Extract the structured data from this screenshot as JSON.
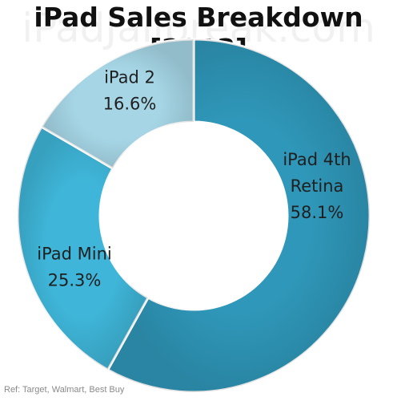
{
  "watermark": "iPadJailbreak.com",
  "source_note": "Ref: Target, Walmart, Best Buy",
  "colors": {
    "ipad_4th_retina": "#2f97b9",
    "ipad_mini": "#3fb6d9",
    "ipad_2": "#a6d6e6",
    "edge": "#ffffff"
  },
  "chart_data": {
    "type": "pie",
    "title": "iPad Sales Breakdown [2013]",
    "donut": true,
    "slices": [
      {
        "label_lines": [
          "iPad 4th",
          "Retina"
        ],
        "value": 58.1,
        "value_label": "58.1%",
        "color_key": "ipad_4th_retina"
      },
      {
        "label_lines": [
          "iPad Mini"
        ],
        "value": 25.3,
        "value_label": "25.3%",
        "color_key": "ipad_mini"
      },
      {
        "label_lines": [
          "iPad 2"
        ],
        "value": 16.6,
        "value_label": "16.6%",
        "color_key": "ipad_2"
      }
    ]
  }
}
